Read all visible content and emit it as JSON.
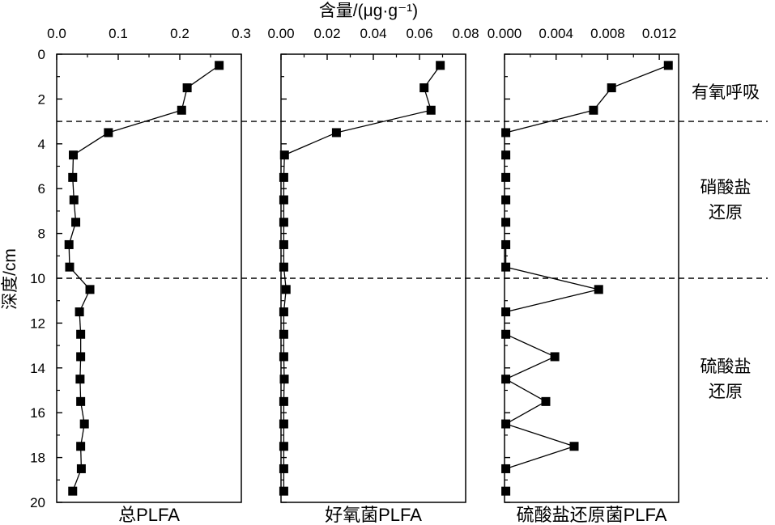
{
  "chart_data": {
    "type": "line",
    "top_axis_label": "含量/(μg·g⁻¹)",
    "ylabel": "深度/cm",
    "y_axis": {
      "ylim": [
        0,
        20
      ],
      "ticks": [
        0,
        2,
        4,
        6,
        8,
        10,
        12,
        14,
        16,
        18,
        20
      ],
      "reversed": true
    },
    "depth": [
      0.5,
      1.5,
      2.5,
      3.5,
      4.5,
      5.5,
      6.5,
      7.5,
      8.5,
      9.5,
      10.5,
      11.5,
      12.5,
      13.5,
      14.5,
      15.5,
      16.5,
      17.5,
      18.5,
      19.5
    ],
    "boundaries": [
      3,
      10
    ],
    "zones": [
      {
        "lines": [
          "有氧呼吸"
        ],
        "y": 1.7
      },
      {
        "lines": [
          "硝酸盐",
          "还原"
        ],
        "y": 6.5
      },
      {
        "lines": [
          "硫酸盐",
          "还原"
        ],
        "y": 14.5
      }
    ],
    "panels": [
      {
        "title": "总PLFA",
        "xlim": [
          0,
          0.3
        ],
        "ticks": [
          0.0,
          0.1,
          0.2,
          0.3
        ],
        "tick_labels": [
          "0.0",
          "0.1",
          "0.2",
          "0.3"
        ],
        "values": [
          0.264,
          0.212,
          0.203,
          0.084,
          0.027,
          0.026,
          0.028,
          0.031,
          0.02,
          0.021,
          0.054,
          0.037,
          0.039,
          0.039,
          0.038,
          0.039,
          0.045,
          0.039,
          0.04,
          0.026
        ],
        "connected": [
          true,
          true,
          true,
          true,
          true,
          true,
          true,
          true,
          true,
          true,
          true,
          true,
          true,
          true,
          true,
          true,
          true,
          true,
          true
        ]
      },
      {
        "title": "好氧菌PLFA",
        "xlim": [
          0,
          0.08
        ],
        "ticks": [
          0.0,
          0.02,
          0.04,
          0.06,
          0.08
        ],
        "tick_labels": [
          "0.00",
          "0.02",
          "0.04",
          "0.06",
          "0.08"
        ],
        "values": [
          0.069,
          0.062,
          0.065,
          0.024,
          0.0015,
          0.0012,
          0.0012,
          0.0012,
          0.0012,
          0.0012,
          0.0022,
          0.0012,
          0.0012,
          0.0012,
          0.0014,
          0.0012,
          0.0012,
          0.0012,
          0.0012,
          0.0012
        ],
        "connected": [
          true,
          true,
          true,
          true,
          true,
          true,
          true,
          true,
          true,
          true,
          true,
          true,
          true,
          true,
          true,
          true,
          true,
          true,
          true
        ]
      },
      {
        "title": "硫酸盐还原菌PLFA",
        "xlim": [
          0,
          0.0135
        ],
        "ticks": [
          0.0,
          0.004,
          0.008,
          0.012
        ],
        "tick_labels": [
          "0.000",
          "0.004",
          "0.008",
          "0.012"
        ],
        "values": [
          0.0127,
          0.0083,
          0.0069,
          0.0001,
          0.0001,
          0.0001,
          0.0001,
          0.0001,
          0.0001,
          0.0001,
          0.0073,
          0.0001,
          0.0001,
          0.0039,
          0.0001,
          0.0032,
          0.0001,
          0.0054,
          0.0001,
          0.0001
        ],
        "connected": [
          true,
          true,
          true,
          false,
          false,
          false,
          false,
          false,
          true,
          true,
          true,
          false,
          true,
          true,
          true,
          true,
          true,
          true,
          false
        ]
      }
    ]
  }
}
